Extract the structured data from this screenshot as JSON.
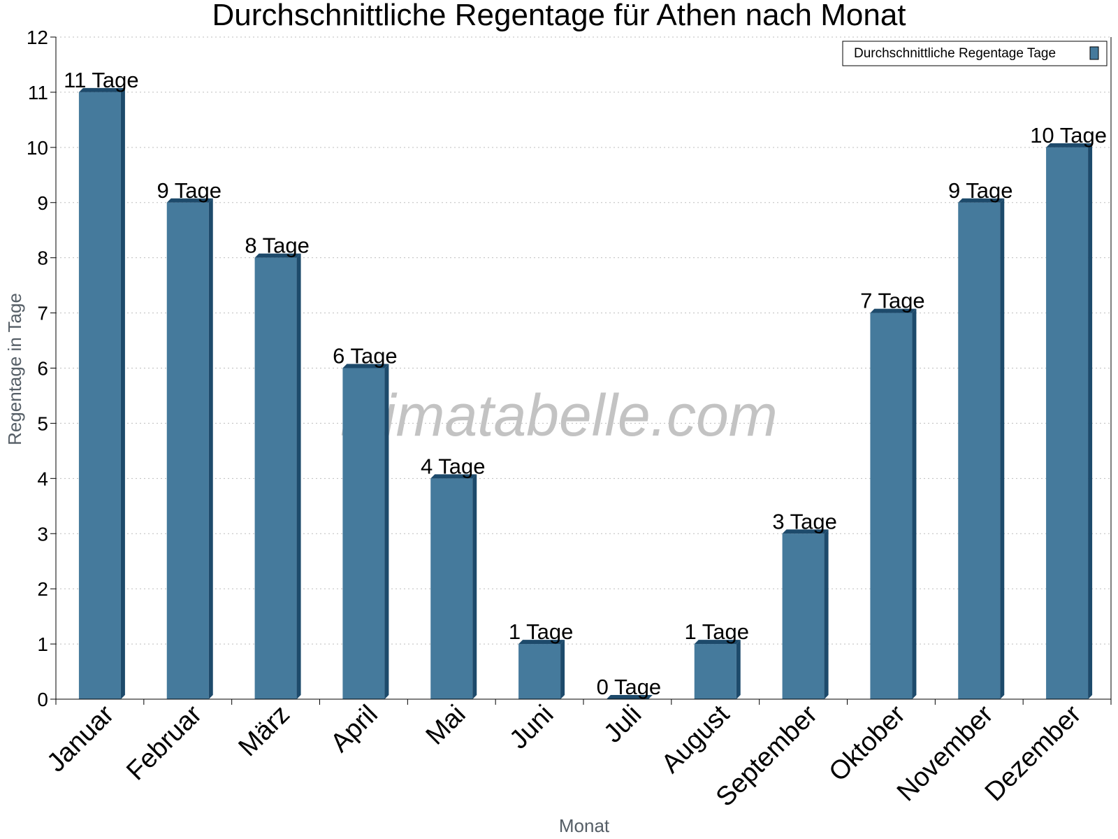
{
  "chart_data": {
    "type": "bar",
    "title": "Durchschnittliche Regentage für Athen nach Monat",
    "xlabel": "Monat",
    "ylabel": "Regentage in Tage",
    "ylim": [
      0,
      12
    ],
    "yticks": [
      "0",
      "1",
      "2",
      "3",
      "4",
      "5",
      "6",
      "7",
      "8",
      "9",
      "10",
      "11",
      "12"
    ],
    "grid": true,
    "legend_position": "top-right",
    "categories": [
      "Januar",
      "Februar",
      "März",
      "April",
      "Mai",
      "Juni",
      "Juli",
      "August",
      "September",
      "Oktober",
      "November",
      "Dezember"
    ],
    "series": [
      {
        "name": "Durchschnittliche Regentage Tage",
        "values": [
          11,
          9,
          8,
          6,
          4,
          1,
          0,
          1,
          3,
          7,
          9,
          10
        ],
        "labels": [
          "11 Tage",
          "9 Tage",
          "8 Tage",
          "6 Tage",
          "4 Tage",
          "1 Tage",
          "0 Tage",
          "1 Tage",
          "3 Tage",
          "7 Tage",
          "9 Tage",
          "10 Tage"
        ],
        "color": "#457a9c",
        "side_color": "#1d4a6b"
      }
    ],
    "watermark": "klimatabelle.com"
  }
}
